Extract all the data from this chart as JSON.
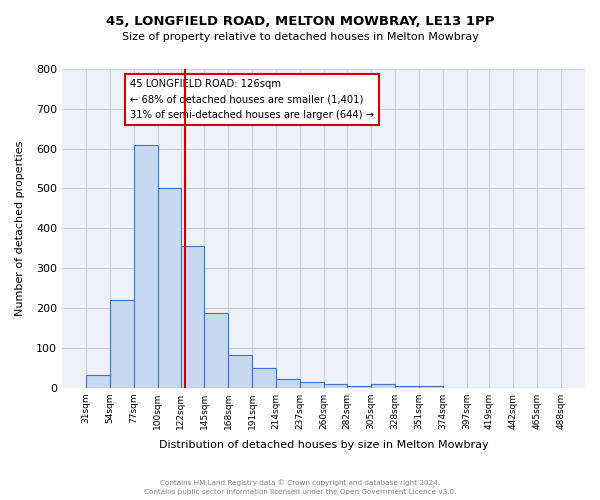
{
  "title_line1": "45, LONGFIELD ROAD, MELTON MOWBRAY, LE13 1PP",
  "title_line2": "Size of property relative to detached houses in Melton Mowbray",
  "xlabel": "Distribution of detached houses by size in Melton Mowbray",
  "ylabel": "Number of detached properties",
  "bar_edges": [
    31,
    54,
    77,
    100,
    122,
    145,
    168,
    191,
    214,
    237,
    260,
    282,
    305,
    328,
    351,
    374,
    397,
    419,
    442,
    465,
    488
  ],
  "bar_heights": [
    32,
    220,
    610,
    500,
    355,
    188,
    83,
    50,
    22,
    14,
    10,
    5,
    8,
    5,
    5,
    0,
    0,
    0,
    0,
    0
  ],
  "bar_color": "#c6d9f1",
  "bar_edge_color": "#4472c4",
  "property_size": 126,
  "vline_color": "#cc0000",
  "ylim": [
    0,
    800
  ],
  "yticks": [
    0,
    100,
    200,
    300,
    400,
    500,
    600,
    700,
    800
  ],
  "annotation_title": "45 LONGFIELD ROAD: 126sqm",
  "annotation_line2": "← 68% of detached houses are smaller (1,401)",
  "annotation_line3": "31% of semi-detached houses are larger (644) →",
  "footer_line1": "Contains HM Land Registry data © Crown copyright and database right 2024.",
  "footer_line2": "Contains public sector information licensed under the Open Government Licence v3.0.",
  "bg_color": "#eef2f9",
  "grid_color": "#c8d0e0"
}
